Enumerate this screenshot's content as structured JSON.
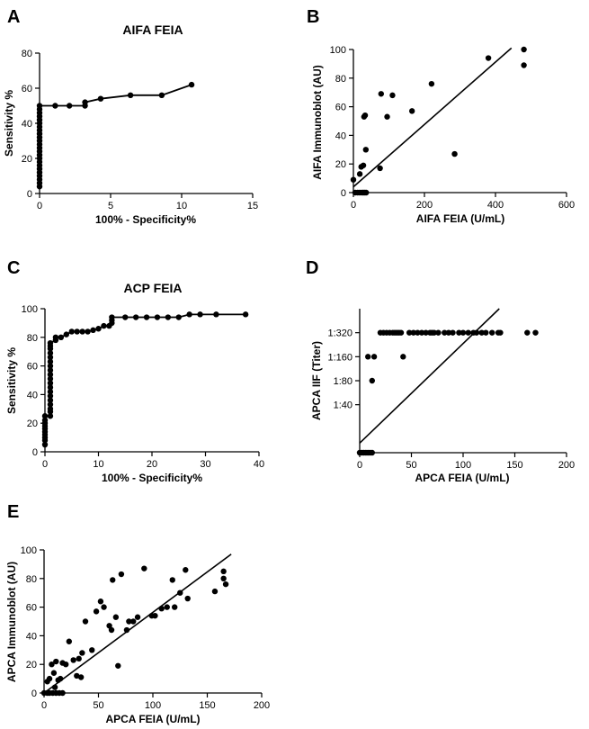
{
  "chart_data": [
    {
      "id": "A",
      "panel_label": "A",
      "type": "line",
      "title": "AIFA FEIA",
      "xlabel": "100% - Specificity%",
      "ylabel": "Sensitivity %",
      "xlim": [
        0,
        15
      ],
      "ylim": [
        0,
        80
      ],
      "xticks": [
        0,
        5,
        10,
        15
      ],
      "yticks": [
        0,
        20,
        40,
        60,
        80
      ],
      "points": [
        [
          0,
          4
        ],
        [
          0,
          6
        ],
        [
          0,
          8
        ],
        [
          0,
          10
        ],
        [
          0,
          12
        ],
        [
          0,
          14
        ],
        [
          0,
          16
        ],
        [
          0,
          18
        ],
        [
          0,
          20
        ],
        [
          0,
          22
        ],
        [
          0,
          24
        ],
        [
          0,
          26
        ],
        [
          0,
          28
        ],
        [
          0,
          30
        ],
        [
          0,
          32
        ],
        [
          0,
          34
        ],
        [
          0,
          36
        ],
        [
          0,
          38
        ],
        [
          0,
          40
        ],
        [
          0,
          42
        ],
        [
          0,
          44
        ],
        [
          0,
          46
        ],
        [
          0,
          48
        ],
        [
          0,
          50
        ],
        [
          1.1,
          50
        ],
        [
          2.1,
          50
        ],
        [
          3.2,
          50
        ],
        [
          3.2,
          52
        ],
        [
          4.3,
          54
        ],
        [
          6.4,
          56
        ],
        [
          8.6,
          56
        ],
        [
          10.7,
          62
        ]
      ]
    },
    {
      "id": "B",
      "panel_label": "B",
      "type": "scatter",
      "title": "",
      "xlabel": "AIFA FEIA (U/mL)",
      "ylabel": "AIFA Immunoblot (AU)",
      "xlim": [
        0,
        600
      ],
      "ylim": [
        0,
        100
      ],
      "xticks": [
        0,
        200,
        400,
        600
      ],
      "yticks": [
        0,
        20,
        40,
        60,
        80,
        100
      ],
      "fit_line": [
        [
          0,
          4
        ],
        [
          445,
          101
        ]
      ],
      "points": [
        [
          0,
          9
        ],
        [
          5,
          0
        ],
        [
          12,
          0
        ],
        [
          18,
          0
        ],
        [
          24,
          0
        ],
        [
          28,
          0
        ],
        [
          32,
          0
        ],
        [
          36,
          0
        ],
        [
          18,
          13
        ],
        [
          22,
          18
        ],
        [
          28,
          19
        ],
        [
          30,
          53
        ],
        [
          33,
          54
        ],
        [
          35,
          30
        ],
        [
          75,
          17
        ],
        [
          78,
          69
        ],
        [
          95,
          53
        ],
        [
          110,
          68
        ],
        [
          165,
          57
        ],
        [
          220,
          76
        ],
        [
          285,
          27
        ],
        [
          380,
          94
        ],
        [
          480,
          100
        ],
        [
          480,
          89
        ]
      ]
    },
    {
      "id": "C",
      "panel_label": "C",
      "type": "line",
      "title": "ACP FEIA",
      "xlabel": "100% - Specificity%",
      "ylabel": "Sensitivity %",
      "xlim": [
        0,
        40
      ],
      "ylim": [
        0,
        100
      ],
      "xticks": [
        0,
        10,
        20,
        30,
        40
      ],
      "yticks": [
        0,
        20,
        40,
        60,
        80,
        100
      ],
      "points": [
        [
          0,
          5
        ],
        [
          0,
          8
        ],
        [
          0,
          10
        ],
        [
          0,
          12
        ],
        [
          0,
          14
        ],
        [
          0,
          16
        ],
        [
          0,
          18
        ],
        [
          0,
          20
        ],
        [
          0,
          22
        ],
        [
          0,
          25
        ],
        [
          1,
          25
        ],
        [
          1,
          28
        ],
        [
          1,
          30
        ],
        [
          1,
          33
        ],
        [
          1,
          36
        ],
        [
          1,
          39
        ],
        [
          1,
          42
        ],
        [
          1,
          45
        ],
        [
          1,
          48
        ],
        [
          1,
          51
        ],
        [
          1,
          54
        ],
        [
          1,
          57
        ],
        [
          1,
          60
        ],
        [
          1,
          63
        ],
        [
          1,
          66
        ],
        [
          1,
          69
        ],
        [
          1,
          72
        ],
        [
          1,
          74
        ],
        [
          1,
          76
        ],
        [
          2,
          78
        ],
        [
          2,
          80
        ],
        [
          3,
          80
        ],
        [
          4,
          82
        ],
        [
          5,
          84
        ],
        [
          6,
          84
        ],
        [
          7,
          84
        ],
        [
          8,
          84
        ],
        [
          9,
          85
        ],
        [
          10,
          86
        ],
        [
          11,
          88
        ],
        [
          12,
          88
        ],
        [
          12.5,
          90
        ],
        [
          12.5,
          92
        ],
        [
          12.5,
          94
        ],
        [
          15,
          94
        ],
        [
          17,
          94
        ],
        [
          19,
          94
        ],
        [
          21,
          94
        ],
        [
          23,
          94
        ],
        [
          25,
          94
        ],
        [
          27,
          96
        ],
        [
          29,
          96
        ],
        [
          32,
          96
        ],
        [
          37.5,
          96
        ]
      ]
    },
    {
      "id": "D",
      "panel_label": "D",
      "type": "scatter",
      "title": "",
      "xlabel": "APCA FEIA (U/mL)",
      "ylabel": "APCA IIF (Titer)",
      "xlim": [
        0,
        200
      ],
      "ylim": [
        0,
        6
      ],
      "xticks": [
        0,
        50,
        100,
        150,
        200
      ],
      "yticks": [
        2,
        3,
        4,
        5
      ],
      "ytick_labels": [
        "1:40",
        "1:80",
        "1:160",
        "1:320"
      ],
      "fit_line": [
        [
          0,
          0.4
        ],
        [
          135,
          6
        ]
      ],
      "points": [
        [
          0,
          0
        ],
        [
          2,
          0
        ],
        [
          4,
          0
        ],
        [
          6,
          0
        ],
        [
          8,
          0
        ],
        [
          10,
          0
        ],
        [
          12,
          0
        ],
        [
          8,
          4
        ],
        [
          12,
          3
        ],
        [
          14,
          4
        ],
        [
          20,
          5
        ],
        [
          23,
          5
        ],
        [
          26,
          5
        ],
        [
          29,
          5
        ],
        [
          32,
          5
        ],
        [
          34,
          5
        ],
        [
          36,
          5
        ],
        [
          38,
          5
        ],
        [
          40,
          5
        ],
        [
          42,
          4
        ],
        [
          48,
          5
        ],
        [
          52,
          5
        ],
        [
          56,
          5
        ],
        [
          60,
          5
        ],
        [
          64,
          5
        ],
        [
          68,
          5
        ],
        [
          70,
          5
        ],
        [
          72,
          5
        ],
        [
          76,
          5
        ],
        [
          82,
          5
        ],
        [
          86,
          5
        ],
        [
          90,
          5
        ],
        [
          96,
          5
        ],
        [
          100,
          5
        ],
        [
          105,
          5
        ],
        [
          110,
          5
        ],
        [
          113,
          5
        ],
        [
          118,
          5
        ],
        [
          122,
          5
        ],
        [
          128,
          5
        ],
        [
          134,
          5
        ],
        [
          136,
          5
        ],
        [
          162,
          5
        ],
        [
          170,
          5
        ]
      ]
    },
    {
      "id": "E",
      "panel_label": "E",
      "type": "scatter",
      "title": "",
      "xlabel": "APCA FEIA (U/mL)",
      "ylabel": "APCA Immunoblot (AU)",
      "xlim": [
        0,
        200
      ],
      "ylim": [
        0,
        100
      ],
      "xticks": [
        0,
        50,
        100,
        150,
        200
      ],
      "yticks": [
        0,
        20,
        40,
        60,
        80,
        100
      ],
      "fit_line": [
        [
          0,
          0
        ],
        [
          172,
          97
        ]
      ],
      "points": [
        [
          0,
          0
        ],
        [
          3,
          0
        ],
        [
          5,
          0
        ],
        [
          8,
          0
        ],
        [
          11,
          0
        ],
        [
          14,
          0
        ],
        [
          17,
          0
        ],
        [
          3,
          8
        ],
        [
          5,
          10
        ],
        [
          7,
          20
        ],
        [
          9,
          14
        ],
        [
          10,
          4
        ],
        [
          11,
          22
        ],
        [
          13,
          9
        ],
        [
          15,
          10
        ],
        [
          17,
          21
        ],
        [
          20,
          20
        ],
        [
          23,
          36
        ],
        [
          27,
          23
        ],
        [
          30,
          12
        ],
        [
          32,
          24
        ],
        [
          34,
          11
        ],
        [
          35,
          28
        ],
        [
          38,
          50
        ],
        [
          44,
          30
        ],
        [
          48,
          57
        ],
        [
          52,
          64
        ],
        [
          55,
          60
        ],
        [
          60,
          47
        ],
        [
          62,
          44
        ],
        [
          63,
          79
        ],
        [
          66,
          53
        ],
        [
          68,
          19
        ],
        [
          71,
          83
        ],
        [
          76,
          44
        ],
        [
          78,
          50
        ],
        [
          82,
          50
        ],
        [
          86,
          53
        ],
        [
          92,
          87
        ],
        [
          99,
          54
        ],
        [
          102,
          54
        ],
        [
          108,
          59
        ],
        [
          113,
          60
        ],
        [
          118,
          79
        ],
        [
          120,
          60
        ],
        [
          125,
          70
        ],
        [
          130,
          86
        ],
        [
          132,
          66
        ],
        [
          157,
          71
        ],
        [
          165,
          85
        ],
        [
          165,
          80
        ],
        [
          167,
          76
        ]
      ]
    }
  ]
}
